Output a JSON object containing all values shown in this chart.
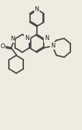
{
  "bg_color": "#f0ebe0",
  "line_color": "#4a4a4a",
  "text_color": "#1a1a1a",
  "line_width": 1.4,
  "font_size": 6.2,
  "figsize": [
    1.2,
    1.89
  ],
  "dpi": 100,
  "xlim": [
    0,
    120
  ],
  "ylim": [
    0,
    189
  ]
}
